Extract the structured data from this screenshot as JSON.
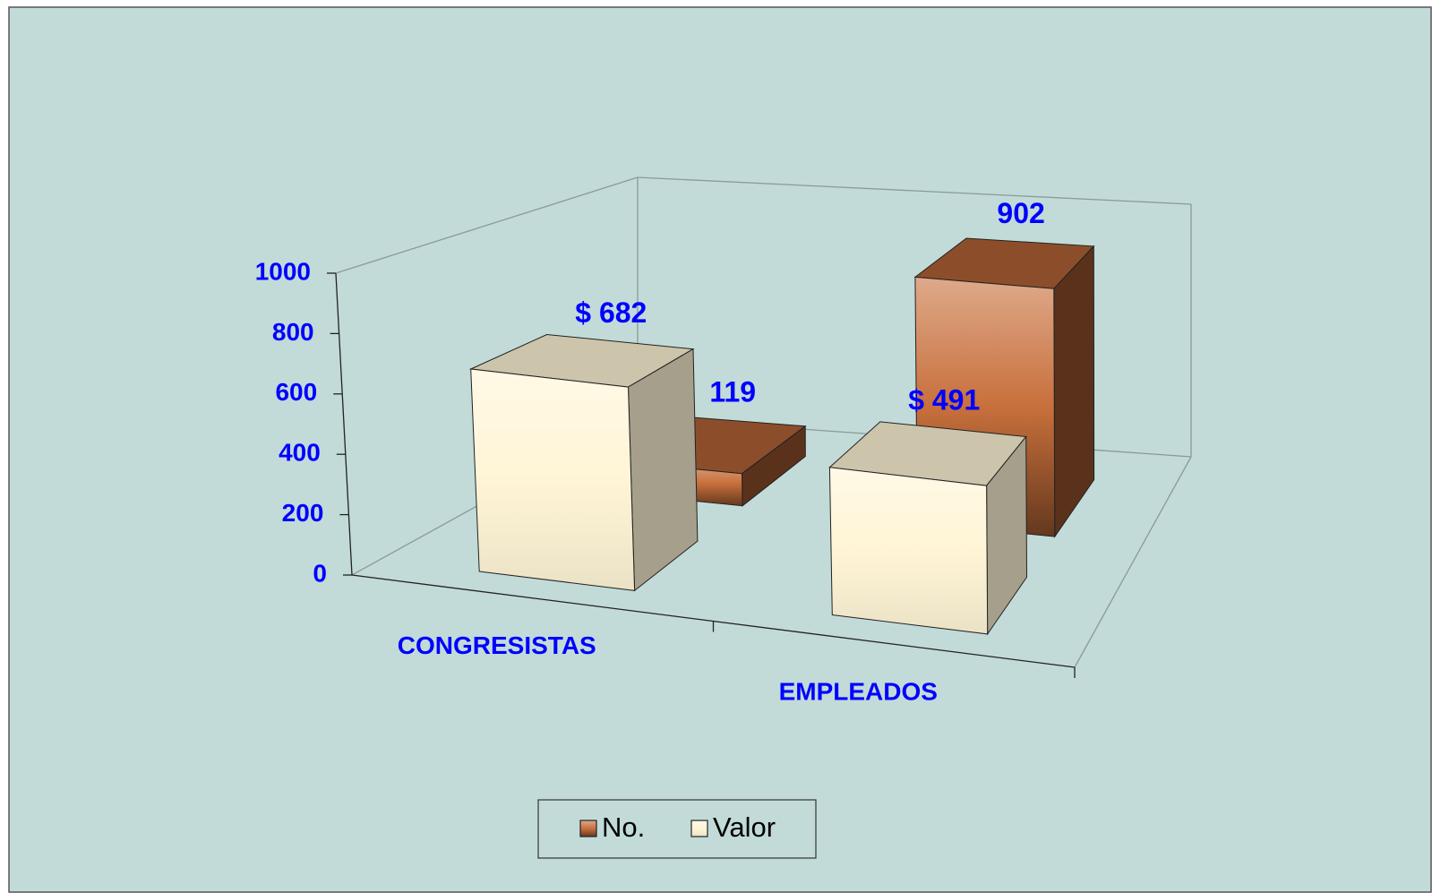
{
  "chart_data": {
    "type": "bar3d",
    "categories": [
      "CONGRESISTAS",
      "EMPLEADOS"
    ],
    "series": [
      {
        "name": "No.",
        "color": "#c8703c",
        "values": [
          119,
          902
        ]
      },
      {
        "name": "Valor",
        "color": "#fff5d6",
        "values": [
          682,
          491
        ],
        "value_labels": [
          "$ 682",
          "$ 491"
        ]
      }
    ],
    "ylim": [
      0,
      1000
    ],
    "yticks": [
      0,
      200,
      400,
      600,
      800,
      1000
    ],
    "legend": "bottom"
  }
}
